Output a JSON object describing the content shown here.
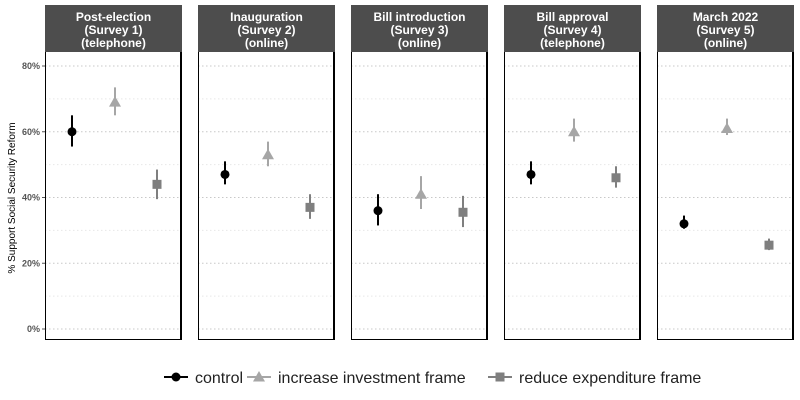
{
  "chart_data": {
    "type": "scatter",
    "ylabel": "% Support Social Security Reform",
    "ylim": [
      0,
      80
    ],
    "yticks": [
      0,
      20,
      40,
      60,
      80
    ],
    "ytick_labels": [
      "0%",
      "20%",
      "40%",
      "60%",
      "80%"
    ],
    "grid": "horizontal dotted",
    "legend_position": "bottom",
    "panels": [
      {
        "title": [
          "Post-election",
          "(Survey 1)",
          "(telephone)"
        ]
      },
      {
        "title": [
          "Inauguration",
          "(Survey 2)",
          "(online)"
        ]
      },
      {
        "title": [
          "Bill introduction",
          "(Survey 3)",
          "(online)"
        ]
      },
      {
        "title": [
          "Bill approval",
          "(Survey 4)",
          "(telephone)"
        ]
      },
      {
        "title": [
          "March 2022",
          "(Survey 5)",
          "(online)"
        ]
      }
    ],
    "series": [
      {
        "name": "control",
        "marker": "circle",
        "color": "#000000",
        "values": [
          60,
          47,
          36,
          47,
          32
        ],
        "ci_low": [
          55.5,
          44,
          31.5,
          44,
          30.5
        ],
        "ci_high": [
          65,
          51,
          41,
          51,
          34.5
        ]
      },
      {
        "name": "increase investment frame",
        "marker": "triangle",
        "color": "#a6a6a6",
        "values": [
          69,
          53,
          41,
          60,
          61
        ],
        "ci_low": [
          65,
          49.5,
          36.5,
          57,
          59
        ],
        "ci_high": [
          73.5,
          57,
          46.5,
          64,
          64
        ]
      },
      {
        "name": "reduce expenditure frame",
        "marker": "square",
        "color": "#7f7f7f",
        "values": [
          44,
          37,
          35.5,
          46,
          25.5
        ],
        "ci_low": [
          39.5,
          33.5,
          31,
          43,
          24
        ],
        "ci_high": [
          48.5,
          41,
          40.5,
          49.5,
          27.5
        ]
      }
    ]
  }
}
